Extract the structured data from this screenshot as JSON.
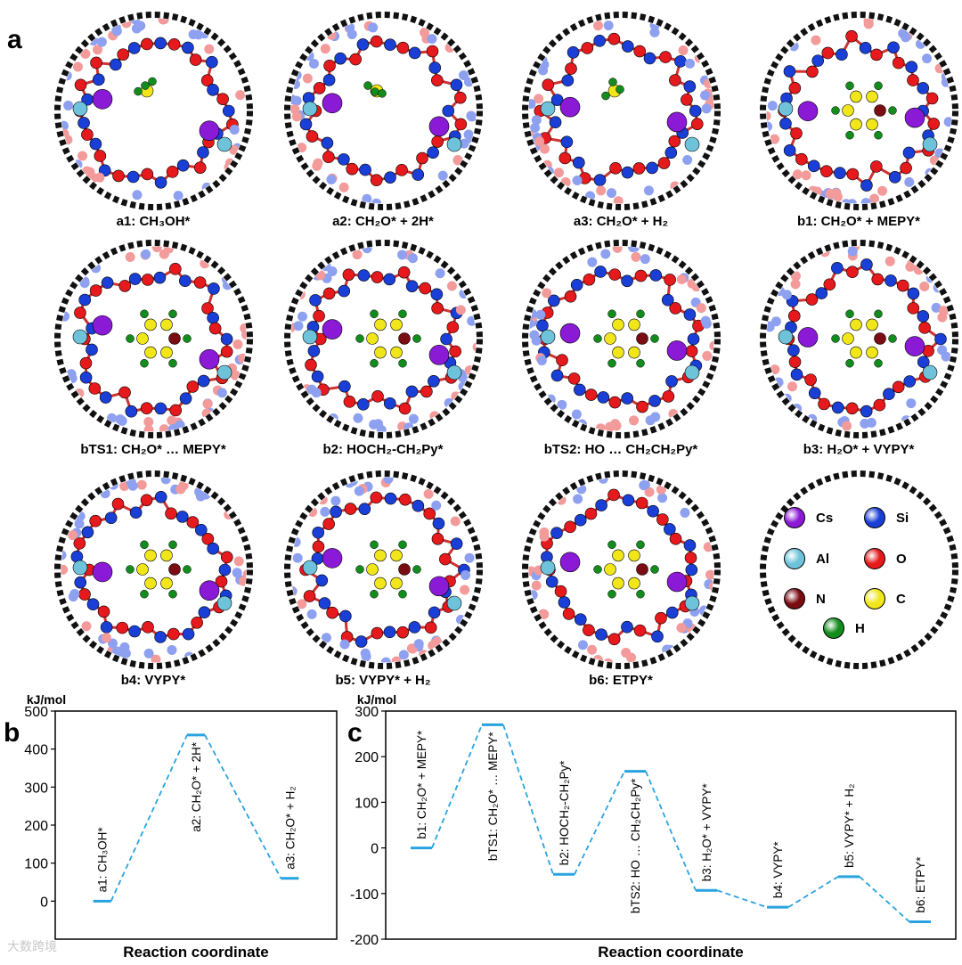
{
  "panels": {
    "a": "a",
    "b": "b",
    "c": "c"
  },
  "structures": [
    {
      "id": "a1",
      "caption": "a1: CH₃OH*"
    },
    {
      "id": "a2",
      "caption": "a2: CH₂O* + 2H*"
    },
    {
      "id": "a3",
      "caption": "a3: CH₂O* + H₂"
    },
    {
      "id": "b1",
      "caption": "b1: CH₂O* + MEPY*"
    },
    {
      "id": "bTS1",
      "caption": "bTS1: CH₂O* … MEPY*"
    },
    {
      "id": "b2",
      "caption": "b2: HOCH₂-CH₂Py*"
    },
    {
      "id": "bTS2",
      "caption": "bTS2: HO … CH₂CH₂Py*"
    },
    {
      "id": "b3",
      "caption": "b3: H₂O* + VYPY*"
    },
    {
      "id": "b4",
      "caption": "b4: VYPY*"
    },
    {
      "id": "b5",
      "caption": "b5: VYPY* + H₂"
    },
    {
      "id": "b6",
      "caption": "b6: ETPY*"
    }
  ],
  "legend": [
    {
      "symbol": "Cs",
      "color": "#8a1ad6"
    },
    {
      "symbol": "Si",
      "color": "#1a3fd6"
    },
    {
      "symbol": "Al",
      "color": "#6ec3da"
    },
    {
      "symbol": "O",
      "color": "#e6191c"
    },
    {
      "symbol": "N",
      "color": "#7a0c14"
    },
    {
      "symbol": "C",
      "color": "#f0e61a"
    },
    {
      "symbol": "H",
      "color": "#128c1c"
    }
  ],
  "colors": {
    "profile": "#29a3e0",
    "ring": "#111111"
  },
  "watermark": "大数跨境",
  "chart_data": [
    {
      "type": "line",
      "panel": "b",
      "ylabel_unit": "kJ/mol",
      "xlabel": "Reaction coordinate",
      "ylim": [
        -100,
        500
      ],
      "yticks": [
        0,
        100,
        200,
        300,
        400,
        500
      ],
      "states": [
        {
          "label": "a1: CH₃OH*",
          "value": 0
        },
        {
          "label": "a2: CH₂O* + 2H*",
          "value": 437
        },
        {
          "label": "a3: CH₂O* + H₂",
          "value": 60
        }
      ]
    },
    {
      "type": "line",
      "panel": "c",
      "ylabel_unit": "kJ/mol",
      "xlabel": "Reaction coordinate",
      "ylim": [
        -200,
        300
      ],
      "yticks": [
        -200,
        -100,
        0,
        100,
        200,
        300
      ],
      "states": [
        {
          "label": "b1: CH₂O* + MEPY*",
          "value": 0
        },
        {
          "label": "bTS1: CH₂O* … MEPY*",
          "value": 270
        },
        {
          "label": "b2: HOCH₂-CH₂Py*",
          "value": -58
        },
        {
          "label": "bTS2: HO … CH₂CH₂Py*",
          "value": 168
        },
        {
          "label": "b3: H₂O* + VYPY*",
          "value": -93
        },
        {
          "label": "b4: VYPY*",
          "value": -130
        },
        {
          "label": "b5: VYPY* + H₂",
          "value": -63
        },
        {
          "label": "b6: ETPY*",
          "value": -162
        }
      ]
    }
  ]
}
